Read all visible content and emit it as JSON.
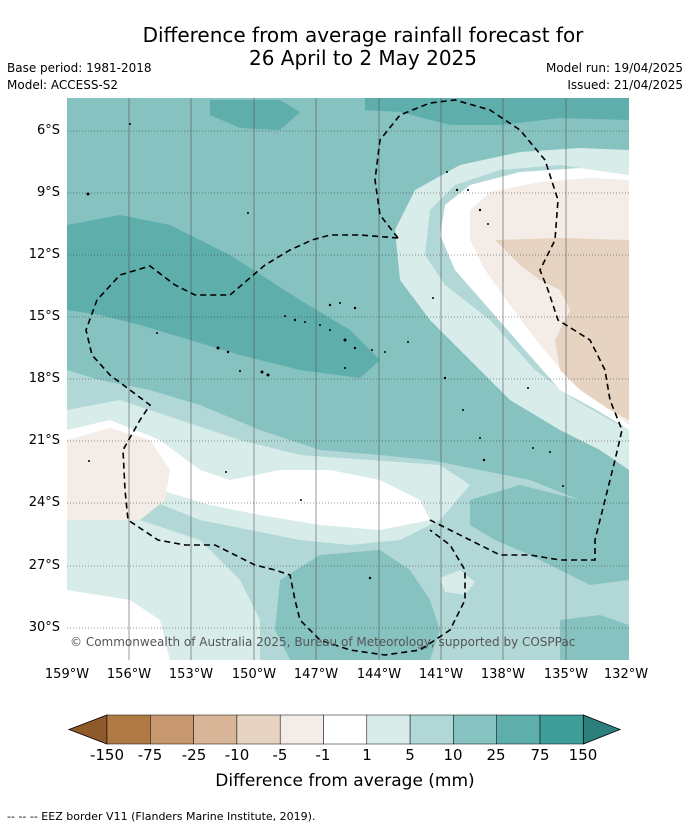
{
  "title": "Difference from average rainfall forecast for\n26 April to 2 May 2025",
  "meta_left": [
    "Base period: 1981-2018",
    "Model: ACCESS-S2"
  ],
  "meta_right": [
    "Model run: 19/04/2025",
    "Issued: 21/04/2025"
  ],
  "lat_labels": [
    "6°S",
    "9°S",
    "12°S",
    "15°S",
    "18°S",
    "21°S",
    "24°S",
    "27°S",
    "30°S"
  ],
  "lon_labels": [
    "159°W",
    "156°W",
    "153°W",
    "150°W",
    "147°W",
    "144°W",
    "141°W",
    "138°W",
    "135°W",
    "132°W"
  ],
  "copyright": "© Commonwealth of Australia 2025, Bureau of Meteorology, supported by COSPPac",
  "colorbar": {
    "ticks": [
      "-150",
      "-75",
      "-25",
      "-10",
      "-5",
      "-1",
      "1",
      "5",
      "10",
      "25",
      "75",
      "150"
    ],
    "colors": [
      "#8f5a2a",
      "#b07a45",
      "#c7986f",
      "#d7b596",
      "#e6d3c1",
      "#f4ece6",
      "#ffffff",
      "#d8ecea",
      "#b1d8d6",
      "#86c2c0",
      "#5eaeab",
      "#3d9d99",
      "#2b7f7c"
    ],
    "label": "Difference from average (mm)"
  },
  "footnote": "-- -- -- EEZ border V11 (Flanders Marine Institute, 2019)."
}
